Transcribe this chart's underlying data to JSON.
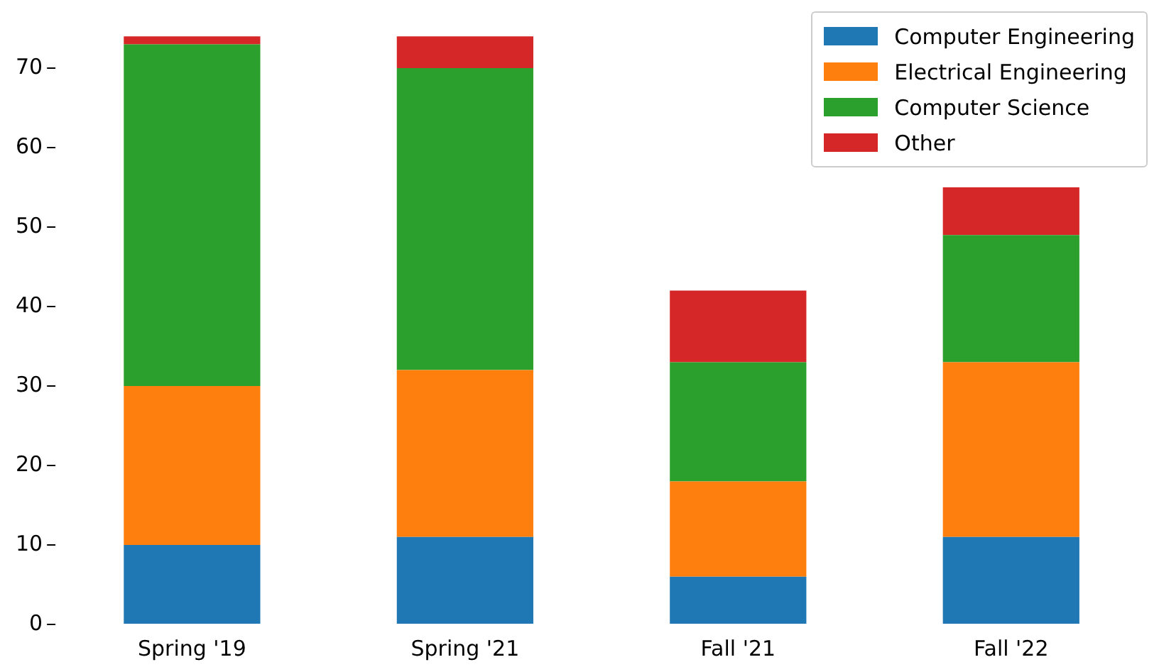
{
  "chart_data": {
    "type": "bar",
    "stacked": true,
    "categories": [
      "Spring '19",
      "Spring '21",
      "Fall '21",
      "Fall '22"
    ],
    "series": [
      {
        "name": "Computer Engineering",
        "color": "#1f77b4",
        "values": [
          10,
          11,
          6,
          11
        ]
      },
      {
        "name": "Electrical Engineering",
        "color": "#ff7f0e",
        "values": [
          20,
          21,
          12,
          22
        ]
      },
      {
        "name": "Computer Science",
        "color": "#2ca02c",
        "values": [
          43,
          38,
          15,
          16
        ]
      },
      {
        "name": "Other",
        "color": "#d62728",
        "values": [
          1,
          4,
          9,
          6
        ]
      }
    ],
    "ylim": [
      0,
      75
    ],
    "yticks": [
      0,
      10,
      20,
      30,
      40,
      50,
      60,
      70
    ],
    "grid": false,
    "legend": "top right"
  }
}
